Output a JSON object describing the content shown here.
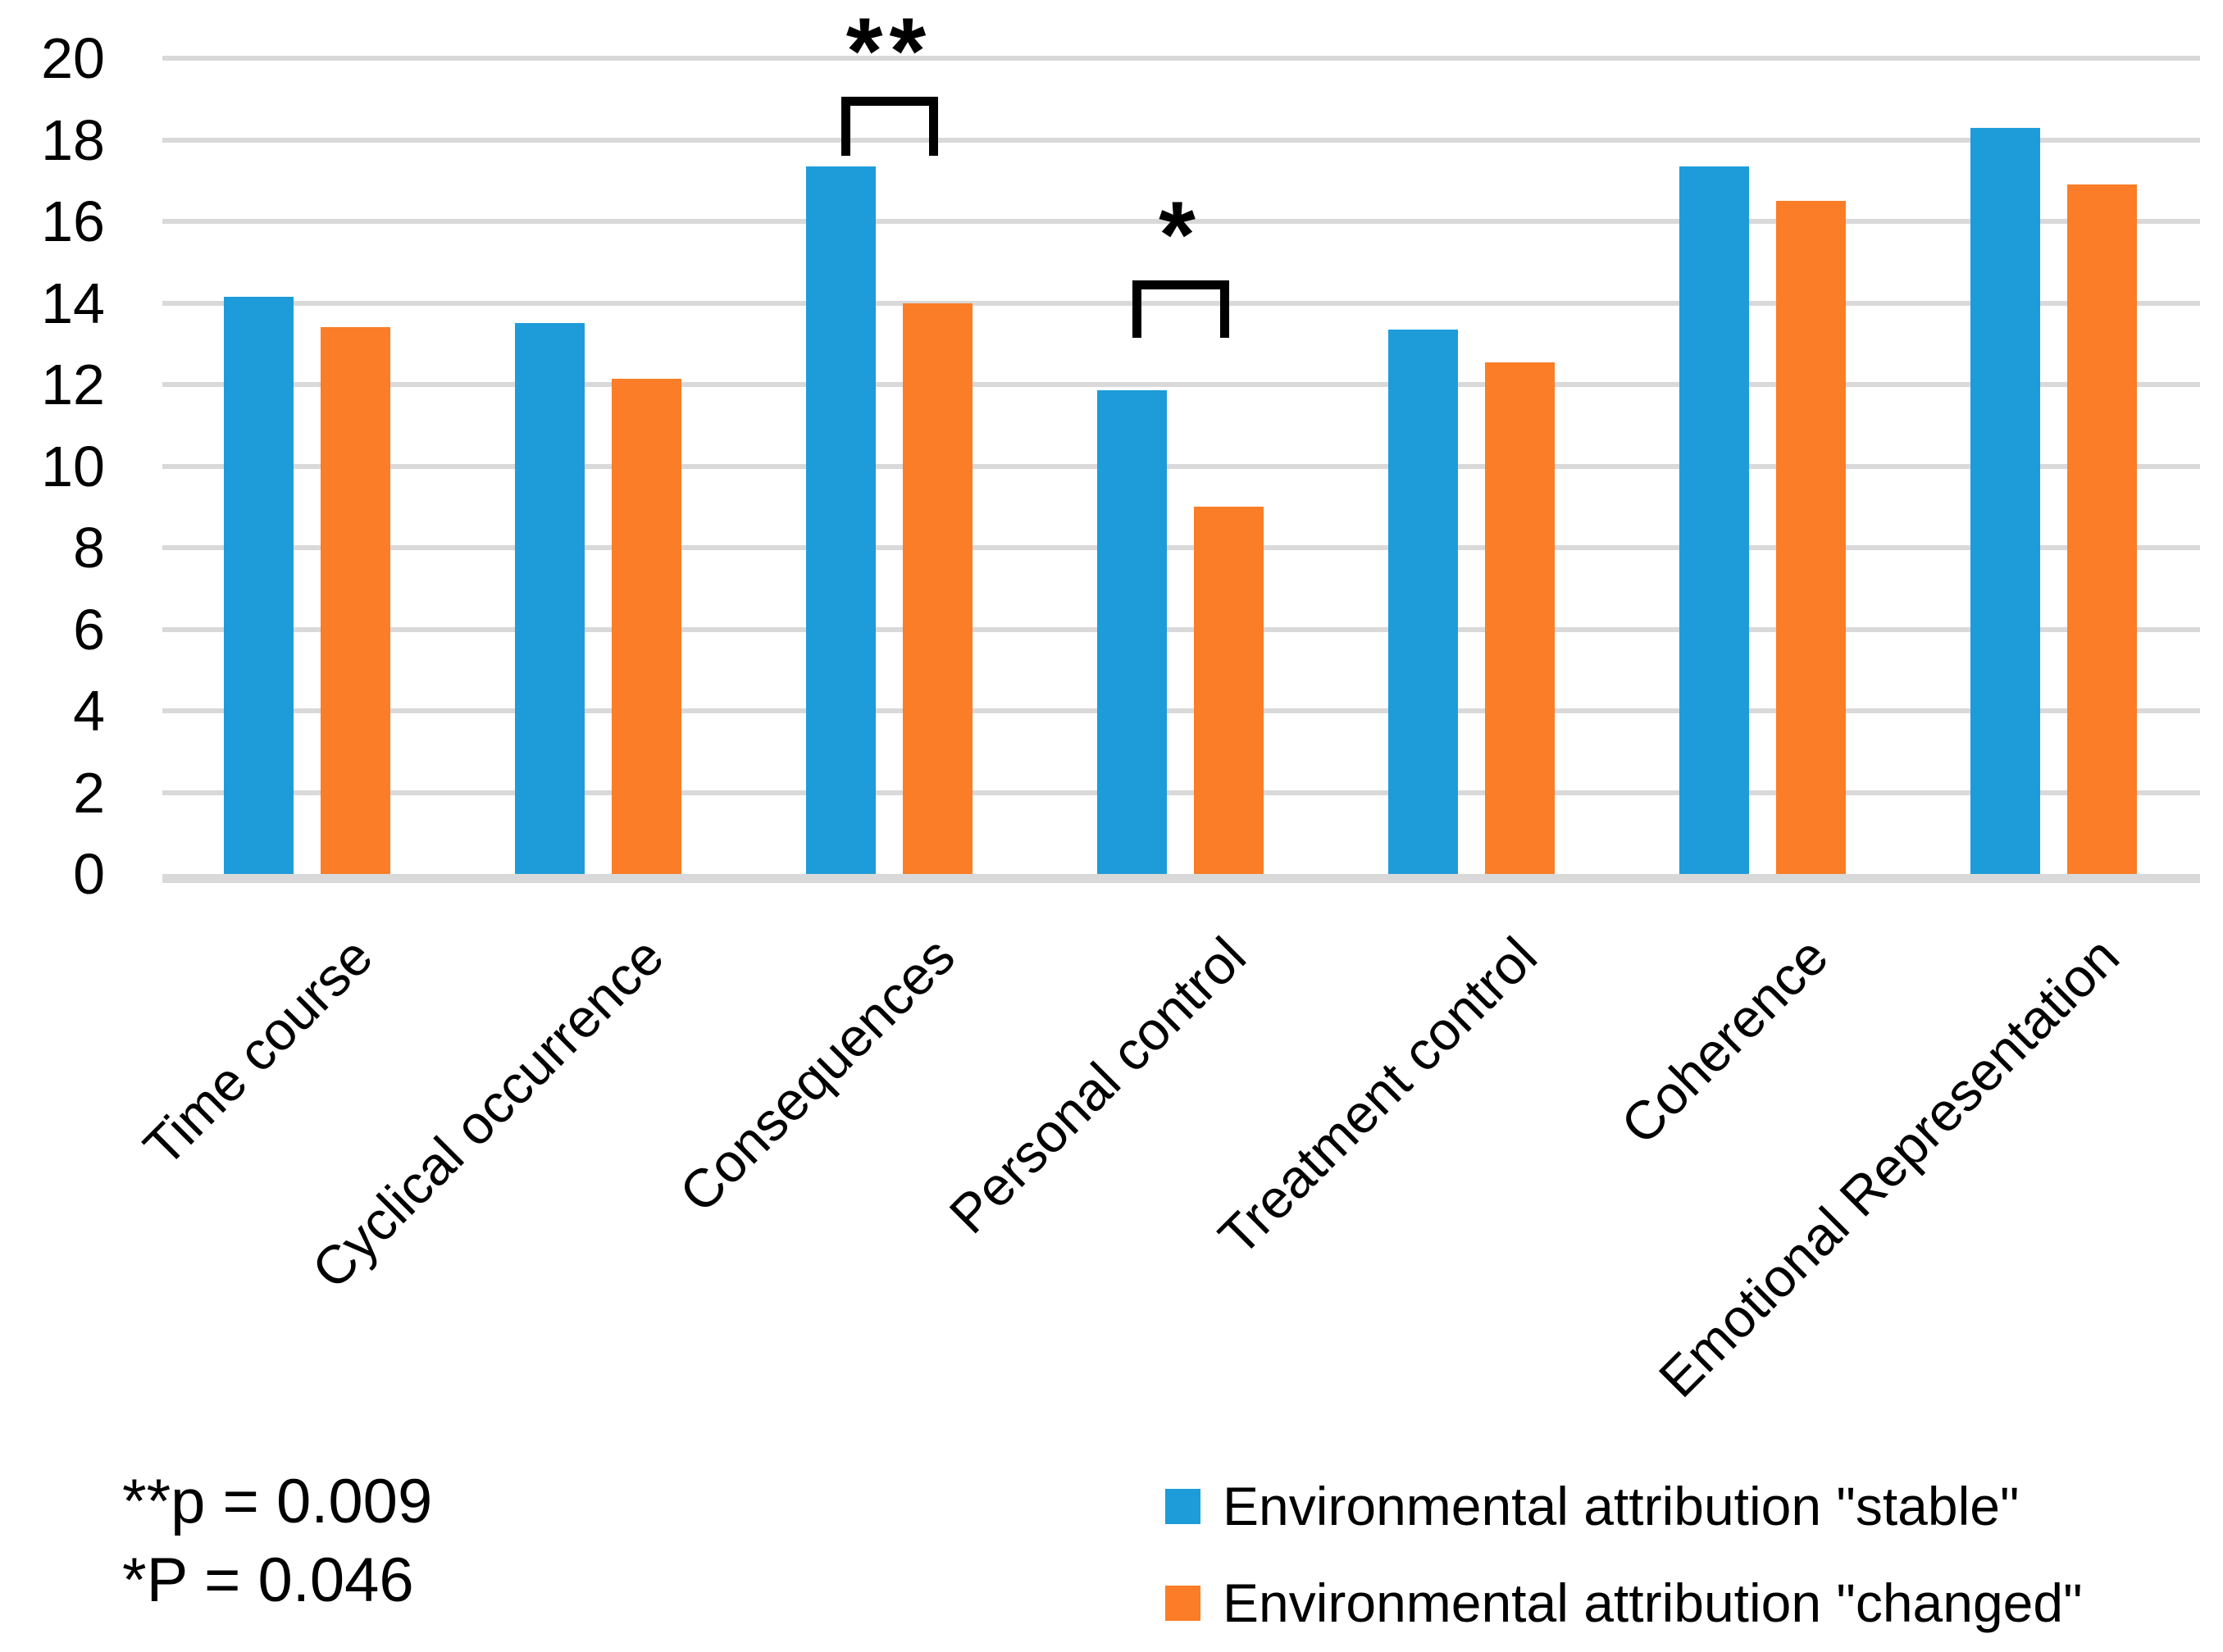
{
  "chart_data": {
    "type": "bar",
    "categories": [
      "Time course",
      "Cyclical occurrence",
      "Consequences",
      "Personal control",
      "Treatment control",
      "Coherence",
      "Emotional Representation"
    ],
    "series": [
      {
        "name": "Environmental attribution \"stable\"",
        "color": "#1E9CD9",
        "values": [
          14.15,
          13.5,
          17.35,
          11.85,
          13.35,
          17.35,
          18.3
        ]
      },
      {
        "name": "Environmental attribution \"changed\"",
        "color": "#FB7D27",
        "values": [
          13.4,
          12.15,
          14.0,
          9.0,
          12.55,
          16.5,
          16.9
        ]
      }
    ],
    "ylim": [
      0,
      20
    ],
    "ytick_step": 2,
    "yticks": [
      "20",
      "18",
      "16",
      "14",
      "12",
      "10",
      "8",
      "6",
      "4",
      "2",
      "0"
    ],
    "grid": true,
    "gridline_color": "#D9D9D9",
    "background_color": "#FFFFFF",
    "legend_position": "bottom-right",
    "annotations": [
      {
        "label": "**",
        "category_index": 2,
        "bracket_top_value": 19.05,
        "bracket_bottom_value": 17.6,
        "note": "p = 0.009"
      },
      {
        "label": "*",
        "category_index": 3,
        "bracket_top_value": 14.55,
        "bracket_bottom_value": 13.15,
        "note": "P = 0.046"
      }
    ],
    "footnotes": [
      "**p = 0.009",
      "*P = 0.046"
    ]
  }
}
